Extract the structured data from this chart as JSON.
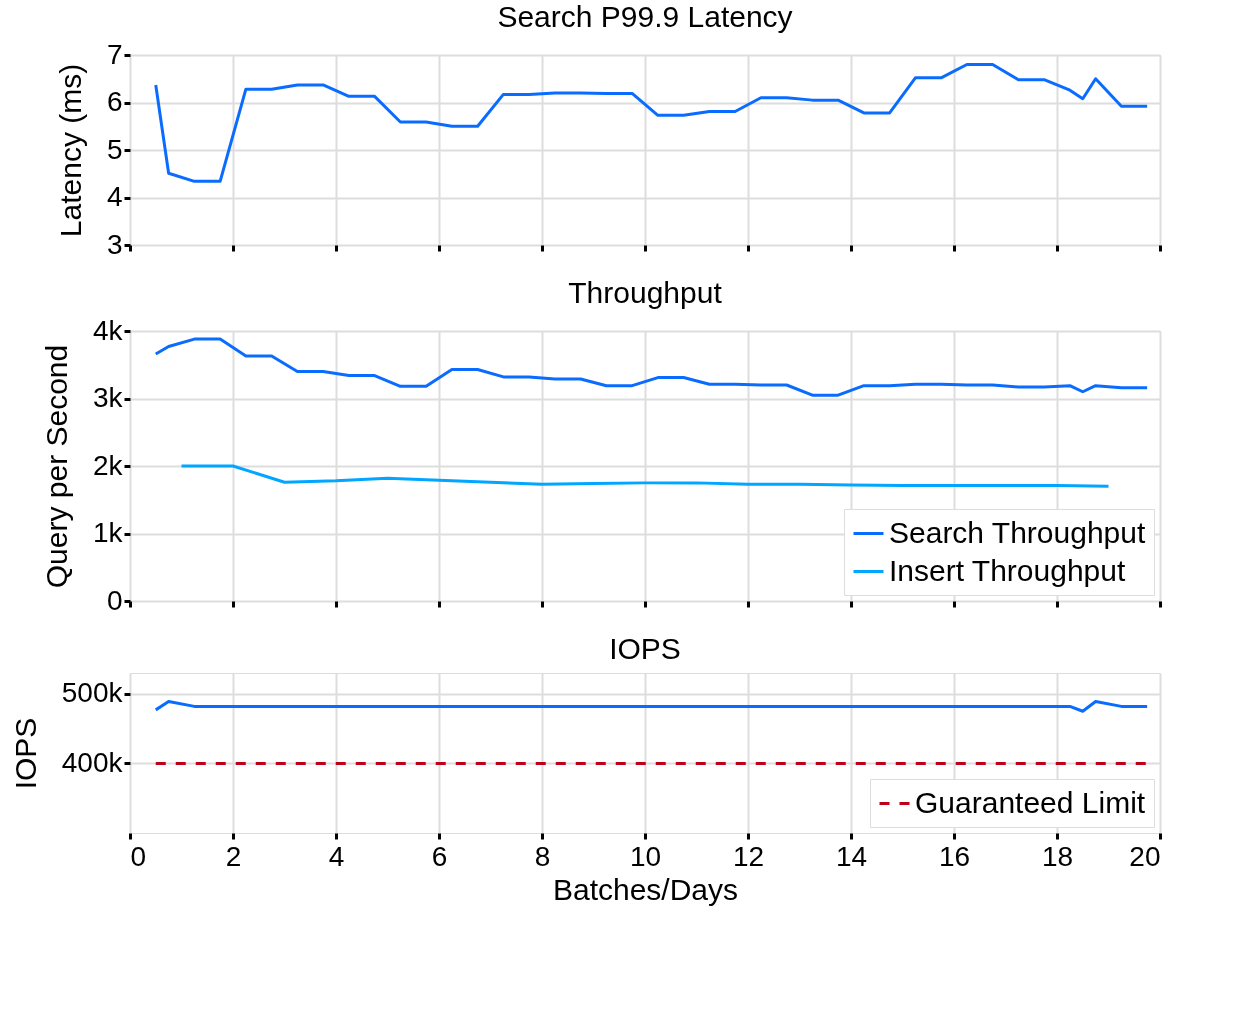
{
  "chart_data": [
    {
      "type": "line",
      "title": "Search P99.9 Latency",
      "ylabel": "Latency (ms)",
      "x": [
        0.5,
        0.75,
        1.25,
        1.75,
        2.25,
        2.75,
        3.25,
        3.75,
        4.25,
        4.75,
        5.25,
        5.75,
        6.25,
        6.75,
        7.25,
        7.75,
        8.25,
        8.75,
        9.25,
        9.75,
        10.25,
        10.75,
        11.25,
        11.75,
        12.25,
        12.75,
        13.25,
        13.75,
        14.25,
        14.75,
        15.25,
        15.75,
        16.25,
        16.75,
        17.25,
        17.75,
        18.25,
        18.5,
        18.75,
        19.25,
        19.75
      ],
      "series": [
        {
          "color": "#0a6cff",
          "values": [
            6.37,
            4.51,
            4.34,
            4.34,
            6.28,
            6.28,
            6.37,
            6.37,
            6.13,
            6.13,
            5.59,
            5.59,
            5.5,
            5.5,
            6.17,
            6.17,
            6.2,
            6.2,
            6.19,
            6.19,
            5.73,
            5.73,
            5.81,
            5.81,
            6.1,
            6.1,
            6.05,
            6.05,
            5.78,
            5.78,
            6.52,
            6.52,
            6.8,
            6.8,
            6.48,
            6.48,
            6.26,
            6.08,
            6.5,
            5.92,
            5.92
          ]
        }
      ],
      "xlim": [
        0,
        20
      ],
      "xticks": [
        0,
        2,
        4,
        6,
        8,
        10,
        12,
        14,
        16,
        18,
        20
      ],
      "ylim": [
        3,
        7
      ],
      "yticks": [
        3,
        4,
        5,
        6,
        7
      ],
      "grid": true,
      "legend": false,
      "tick_labels": "y",
      "line_style": "solid",
      "marker": "none"
    },
    {
      "type": "line",
      "title": "Throughput",
      "ylabel": "Query per Second",
      "series": [
        {
          "name": "Search Throughput",
          "color": "#0a6cff",
          "x": [
            0.5,
            0.75,
            1.25,
            1.75,
            2.25,
            2.75,
            3.25,
            3.75,
            4.25,
            4.75,
            5.25,
            5.75,
            6.25,
            6.75,
            7.25,
            7.75,
            8.25,
            8.75,
            9.25,
            9.75,
            10.25,
            10.75,
            11.25,
            11.75,
            12.25,
            12.75,
            13.25,
            13.75,
            14.25,
            14.75,
            15.25,
            15.75,
            16.25,
            16.75,
            17.25,
            17.75,
            18.25,
            18.5,
            18.75,
            19.25,
            19.75
          ],
          "values": [
            3660,
            3770,
            3880,
            3880,
            3630,
            3630,
            3400,
            3400,
            3340,
            3340,
            3180,
            3180,
            3430,
            3430,
            3320,
            3320,
            3290,
            3290,
            3190,
            3190,
            3310,
            3310,
            3210,
            3210,
            3200,
            3200,
            3050,
            3050,
            3190,
            3190,
            3210,
            3210,
            3200,
            3200,
            3170,
            3170,
            3190,
            3100,
            3190,
            3160,
            3160
          ]
        },
        {
          "name": "Insert Throughput",
          "color": "#00a6ff",
          "x": [
            1,
            2,
            3,
            4,
            5,
            6,
            7,
            8,
            9,
            10,
            11,
            12,
            13,
            14,
            15,
            16,
            17,
            18,
            19
          ],
          "values": [
            2000,
            2000,
            1760,
            1780,
            1820,
            1790,
            1760,
            1730,
            1740,
            1750,
            1750,
            1730,
            1730,
            1720,
            1710,
            1710,
            1710,
            1710,
            1700
          ]
        }
      ],
      "xlim": [
        0,
        20
      ],
      "xticks": [
        0,
        2,
        4,
        6,
        8,
        10,
        12,
        14,
        16,
        18,
        20
      ],
      "ylim": [
        0,
        4000
      ],
      "yticks": [
        0,
        {
          "value": 1000,
          "label": "1k"
        },
        {
          "value": 2000,
          "label": "2k"
        },
        {
          "value": 3000,
          "label": "3k"
        },
        {
          "value": 4000,
          "label": "4k"
        }
      ],
      "grid": true,
      "legend": "bottom right",
      "tick_labels": "y",
      "line_style": "solid",
      "marker": "none"
    },
    {
      "type": "line",
      "title": "IOPS",
      "ylabel": "IOPS",
      "xlabel": "Batches/Days",
      "series": [
        {
          "color": "#0a6cff",
          "x": [
            0.5,
            0.75,
            1.25,
            18.25,
            18.5,
            18.75,
            19.25,
            19.75
          ],
          "values": [
            477000,
            489000,
            482000,
            482000,
            475000,
            489000,
            482000,
            482000
          ]
        },
        {
          "name": "Guaranteed Limit",
          "color": "#c0001a",
          "line_style": "dashed",
          "x": [
            0.5,
            19.75
          ],
          "values": [
            400000,
            400000
          ]
        }
      ],
      "xlim": [
        0,
        20
      ],
      "xticks": [
        0,
        2,
        4,
        6,
        8,
        10,
        12,
        14,
        16,
        18,
        20
      ],
      "ylim": [
        300000,
        530000
      ],
      "yticks": [
        {
          "value": 400000,
          "label": "400k"
        },
        {
          "value": 500000,
          "label": "500k"
        }
      ],
      "grid": true,
      "legend": "bottom right",
      "line_style": "solid",
      "marker": "none"
    }
  ]
}
